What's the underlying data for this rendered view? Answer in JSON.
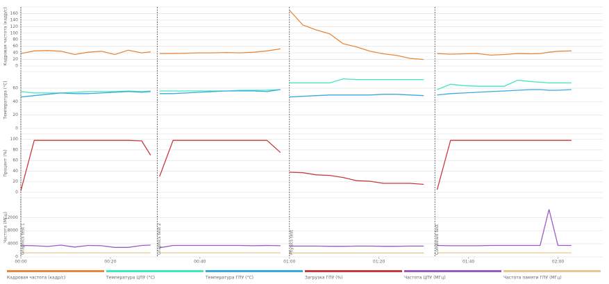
{
  "chart_data": [
    {
      "type": "line",
      "ylabel": "Кадровая частота (кадр/с)",
      "xlim": [
        0,
        130
      ],
      "ylim": [
        0,
        180
      ],
      "yticks": [
        0,
        20,
        40,
        60,
        80,
        100,
        120,
        140,
        160
      ],
      "grid": true,
      "x": [
        0,
        3,
        6,
        9,
        12,
        15,
        18,
        21,
        24,
        27,
        29,
        30,
        31,
        34,
        37,
        40,
        43,
        46,
        49,
        52,
        55,
        58,
        59.5,
        60,
        63,
        66,
        69,
        72,
        75,
        78,
        81,
        84,
        87,
        90,
        92,
        93,
        96,
        99,
        102,
        105,
        108,
        111,
        114,
        116,
        118,
        120,
        123
      ],
      "series": [
        {
          "name": "Кадровая частота (кадр/с)",
          "color": "#e8873a",
          "values": [
            38,
            46,
            47,
            45,
            35,
            42,
            45,
            35,
            48,
            40,
            43,
            null,
            38,
            38,
            39,
            40,
            40,
            41,
            40,
            42,
            46,
            52,
            null,
            170,
            125,
            110,
            98,
            68,
            58,
            45,
            37,
            32,
            23,
            20,
            null,
            38,
            36,
            37,
            38,
            33,
            35,
            38,
            37,
            38,
            42,
            45,
            46
          ]
        }
      ]
    },
    {
      "type": "line",
      "ylabel": "Температура (°C)",
      "xlim": [
        0,
        130
      ],
      "ylim": [
        0,
        85
      ],
      "yticks": [
        0,
        20,
        40,
        60
      ],
      "grid": true,
      "x": [
        0,
        3,
        6,
        9,
        12,
        15,
        18,
        21,
        24,
        27,
        29,
        30,
        31,
        34,
        37,
        40,
        43,
        46,
        49,
        52,
        55,
        58,
        59.5,
        60,
        63,
        66,
        69,
        72,
        75,
        78,
        81,
        84,
        87,
        90,
        92,
        93,
        96,
        99,
        102,
        105,
        108,
        111,
        114,
        116,
        118,
        120,
        123
      ],
      "series": [
        {
          "name": "Температура ЦПУ (°C)",
          "color": "#3de8c0",
          "values": [
            55,
            53,
            53,
            53,
            54,
            55,
            55,
            55,
            56,
            55,
            56,
            null,
            56,
            56,
            56,
            56,
            56,
            56,
            57,
            57,
            57,
            58,
            null,
            68,
            68,
            68,
            68,
            74,
            73,
            73,
            73,
            73,
            73,
            73,
            null,
            58,
            66,
            64,
            63,
            63,
            63,
            72,
            70,
            69,
            68,
            68,
            68
          ]
        },
        {
          "name": "Температура ГПУ (°C)",
          "color": "#3aa8e0",
          "values": [
            47,
            49,
            51,
            53,
            52,
            52,
            53,
            54,
            55,
            54,
            55,
            null,
            52,
            52,
            53,
            54,
            55,
            56,
            56,
            56,
            55,
            58,
            null,
            47,
            48,
            49,
            50,
            50,
            50,
            50,
            51,
            51,
            50,
            49,
            null,
            50,
            52,
            53,
            54,
            55,
            56,
            57,
            58,
            58,
            57,
            57,
            58
          ]
        }
      ]
    },
    {
      "type": "line",
      "ylabel": "Процент (%)",
      "xlim": [
        0,
        130
      ],
      "ylim": [
        0,
        110
      ],
      "yticks": [
        0,
        20,
        40,
        60,
        80,
        100
      ],
      "grid": true,
      "x": [
        0,
        3,
        6,
        9,
        12,
        15,
        18,
        21,
        24,
        27,
        29,
        30,
        31,
        34,
        37,
        40,
        43,
        46,
        49,
        52,
        55,
        58,
        59.5,
        60,
        63,
        66,
        69,
        72,
        75,
        78,
        81,
        84,
        87,
        90,
        92,
        93,
        96,
        99,
        102,
        105,
        108,
        111,
        114,
        116,
        118,
        120,
        123
      ],
      "series": [
        {
          "name": "Загрузка ГПУ (%)",
          "color": "#c83a3a",
          "values": [
            3,
            98,
            98,
            98,
            98,
            98,
            98,
            98,
            98,
            97,
            70,
            null,
            30,
            98,
            98,
            98,
            98,
            98,
            98,
            98,
            98,
            75,
            null,
            38,
            37,
            33,
            32,
            28,
            22,
            21,
            17,
            17,
            17,
            15,
            null,
            5,
            98,
            98,
            98,
            98,
            98,
            98,
            98,
            98,
            98,
            98,
            98
          ]
        }
      ]
    },
    {
      "type": "line",
      "ylabel": "Частота (МГц)",
      "xlim": [
        0,
        130
      ],
      "ylim": [
        0,
        18000
      ],
      "yticks": [
        0,
        4000,
        8000,
        12000
      ],
      "grid": true,
      "xticks": [
        {
          "value": 0,
          "label": "00:00"
        },
        {
          "value": 20,
          "label": "00:20"
        },
        {
          "value": 40,
          "label": "00:40"
        },
        {
          "value": 60,
          "label": "01:00"
        },
        {
          "value": 80,
          "label": "01:20"
        },
        {
          "value": 100,
          "label": "01:40"
        },
        {
          "value": 120,
          "label": "02:00"
        }
      ],
      "markers": [
        {
          "x": 0,
          "label": "Graphics test 1"
        },
        {
          "x": 30.5,
          "label": "Graphics test 2"
        },
        {
          "x": 60,
          "label": "Physics test"
        },
        {
          "x": 92.5,
          "label": "Combined test"
        }
      ],
      "x": [
        0,
        3,
        6,
        9,
        12,
        15,
        18,
        21,
        24,
        27,
        29,
        30,
        31,
        34,
        37,
        40,
        43,
        46,
        49,
        52,
        55,
        58,
        59.5,
        60,
        63,
        66,
        69,
        72,
        75,
        78,
        81,
        84,
        87,
        90,
        92,
        93,
        96,
        99,
        102,
        105,
        108,
        111,
        114,
        116,
        118,
        120,
        123
      ],
      "series": [
        {
          "name": "Частота ЦПУ (МГц)",
          "color": "#9b59c6",
          "values": [
            3500,
            3400,
            3200,
            3600,
            3000,
            3500,
            3400,
            2900,
            2900,
            3500,
            3600,
            null,
            2800,
            3500,
            3500,
            3500,
            3500,
            3500,
            3500,
            3400,
            3500,
            3400,
            null,
            3300,
            3300,
            3300,
            3250,
            3250,
            3300,
            3300,
            3250,
            3250,
            3300,
            3300,
            null,
            3500,
            3400,
            3400,
            3400,
            3500,
            3500,
            3500,
            3500,
            3500,
            14500,
            3500,
            3500
          ]
        },
        {
          "name": "Частота памяти ГПУ (МГц)",
          "color": "#e8c890",
          "values": [
            1250,
            1250,
            1250,
            1250,
            1250,
            1250,
            1250,
            1250,
            1250,
            1250,
            1250,
            null,
            1250,
            1250,
            1250,
            1250,
            1250,
            1250,
            1250,
            1250,
            1250,
            1250,
            null,
            1200,
            1200,
            1200,
            1200,
            1200,
            1200,
            1200,
            1200,
            1200,
            1200,
            1200,
            null,
            1250,
            1250,
            1250,
            1250,
            1250,
            1250,
            1250,
            1250,
            1250,
            1250,
            1250,
            1250
          ]
        }
      ]
    }
  ]
}
